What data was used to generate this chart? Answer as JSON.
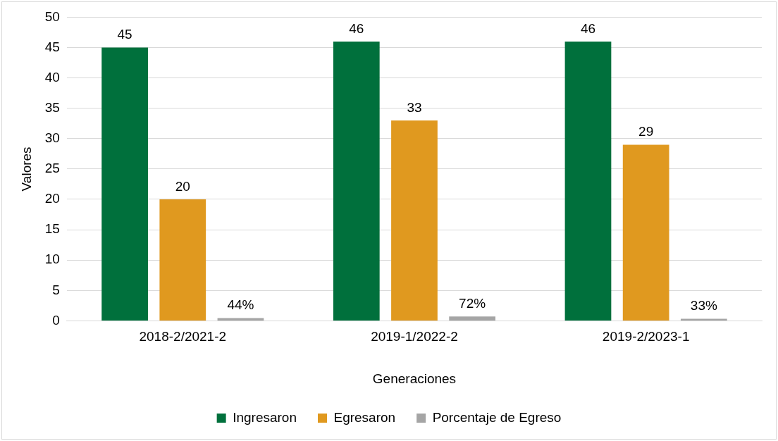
{
  "chart_data": {
    "type": "bar",
    "xlabel": "Generaciones",
    "ylabel": "Valores",
    "categories": [
      "2018-2/2021-2",
      "2019-1/2022-2",
      "2019-2/2023-1"
    ],
    "series": [
      {
        "name": "Ingresaron",
        "color": "#00703c",
        "values": [
          45,
          46,
          46
        ],
        "value_labels": [
          "45",
          "46",
          "46"
        ]
      },
      {
        "name": "Egresaron",
        "color": "#e0991f",
        "values": [
          20,
          33,
          29
        ],
        "value_labels": [
          "20",
          "33",
          "29"
        ]
      },
      {
        "name": "Porcentaje de Egreso",
        "color": "#a5a5a5",
        "values": [
          0.44,
          0.72,
          0.33
        ],
        "value_labels": [
          "44%",
          "72%",
          "33%"
        ]
      }
    ],
    "ylim": [
      0,
      50
    ],
    "yticks": [
      0,
      5,
      10,
      15,
      20,
      25,
      30,
      35,
      40,
      45,
      50
    ],
    "grid": "y",
    "legend": "bottom"
  }
}
